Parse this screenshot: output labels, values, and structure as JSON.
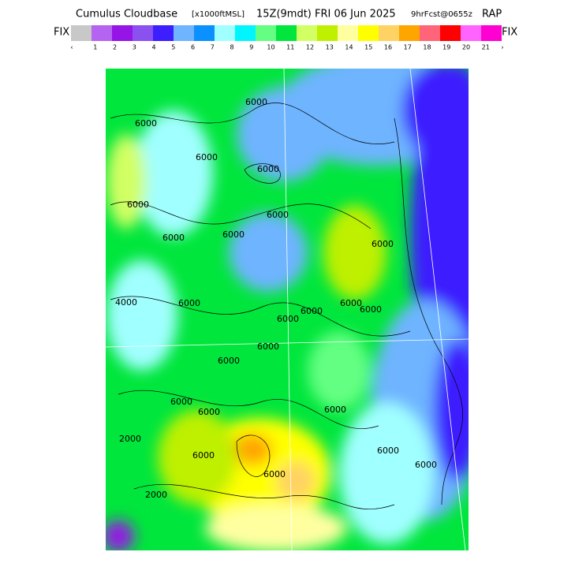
{
  "header": {
    "title_main": "Cumulus Cloudbase",
    "title_units": "[x1000ftMSL]",
    "title_time": "15Z(9mdt) FRI 06 Jun 2025",
    "title_fcst": "9hrFcst@0655z",
    "title_model": "RAP"
  },
  "colorbar": {
    "left_label": "FIX",
    "right_label": "FIX",
    "colors": [
      "#c8c8c8",
      "#b464f0",
      "#9614e6",
      "#8a50f0",
      "#3c1eff",
      "#6eb4ff",
      "#0a90ff",
      "#a0ffff",
      "#00f5ff",
      "#64ff82",
      "#00e63c",
      "#d2ff64",
      "#bef000",
      "#ffffa0",
      "#ffff00",
      "#ffd264",
      "#ffa500",
      "#ff6478",
      "#ff0000",
      "#ff64ff",
      "#ff00d2"
    ],
    "labels": [
      "‹",
      "1",
      "2",
      "3",
      "4",
      "5",
      "6",
      "7",
      "8",
      "9",
      "10",
      "11",
      "12",
      "13",
      "14",
      "15",
      "16",
      "17",
      "18",
      "19",
      "20",
      "21",
      "›"
    ]
  },
  "map": {
    "contour_labels": [
      "6000",
      "6000",
      "6000",
      "6000",
      "6000",
      "6000",
      "6000",
      "6000",
      "4000",
      "6000",
      "6000",
      "6000",
      "6000",
      "6000",
      "6000",
      "6000",
      "6000",
      "2000",
      "6000",
      "6000",
      "2000",
      "6000",
      "6000",
      "6000",
      "6000",
      "6000"
    ]
  }
}
